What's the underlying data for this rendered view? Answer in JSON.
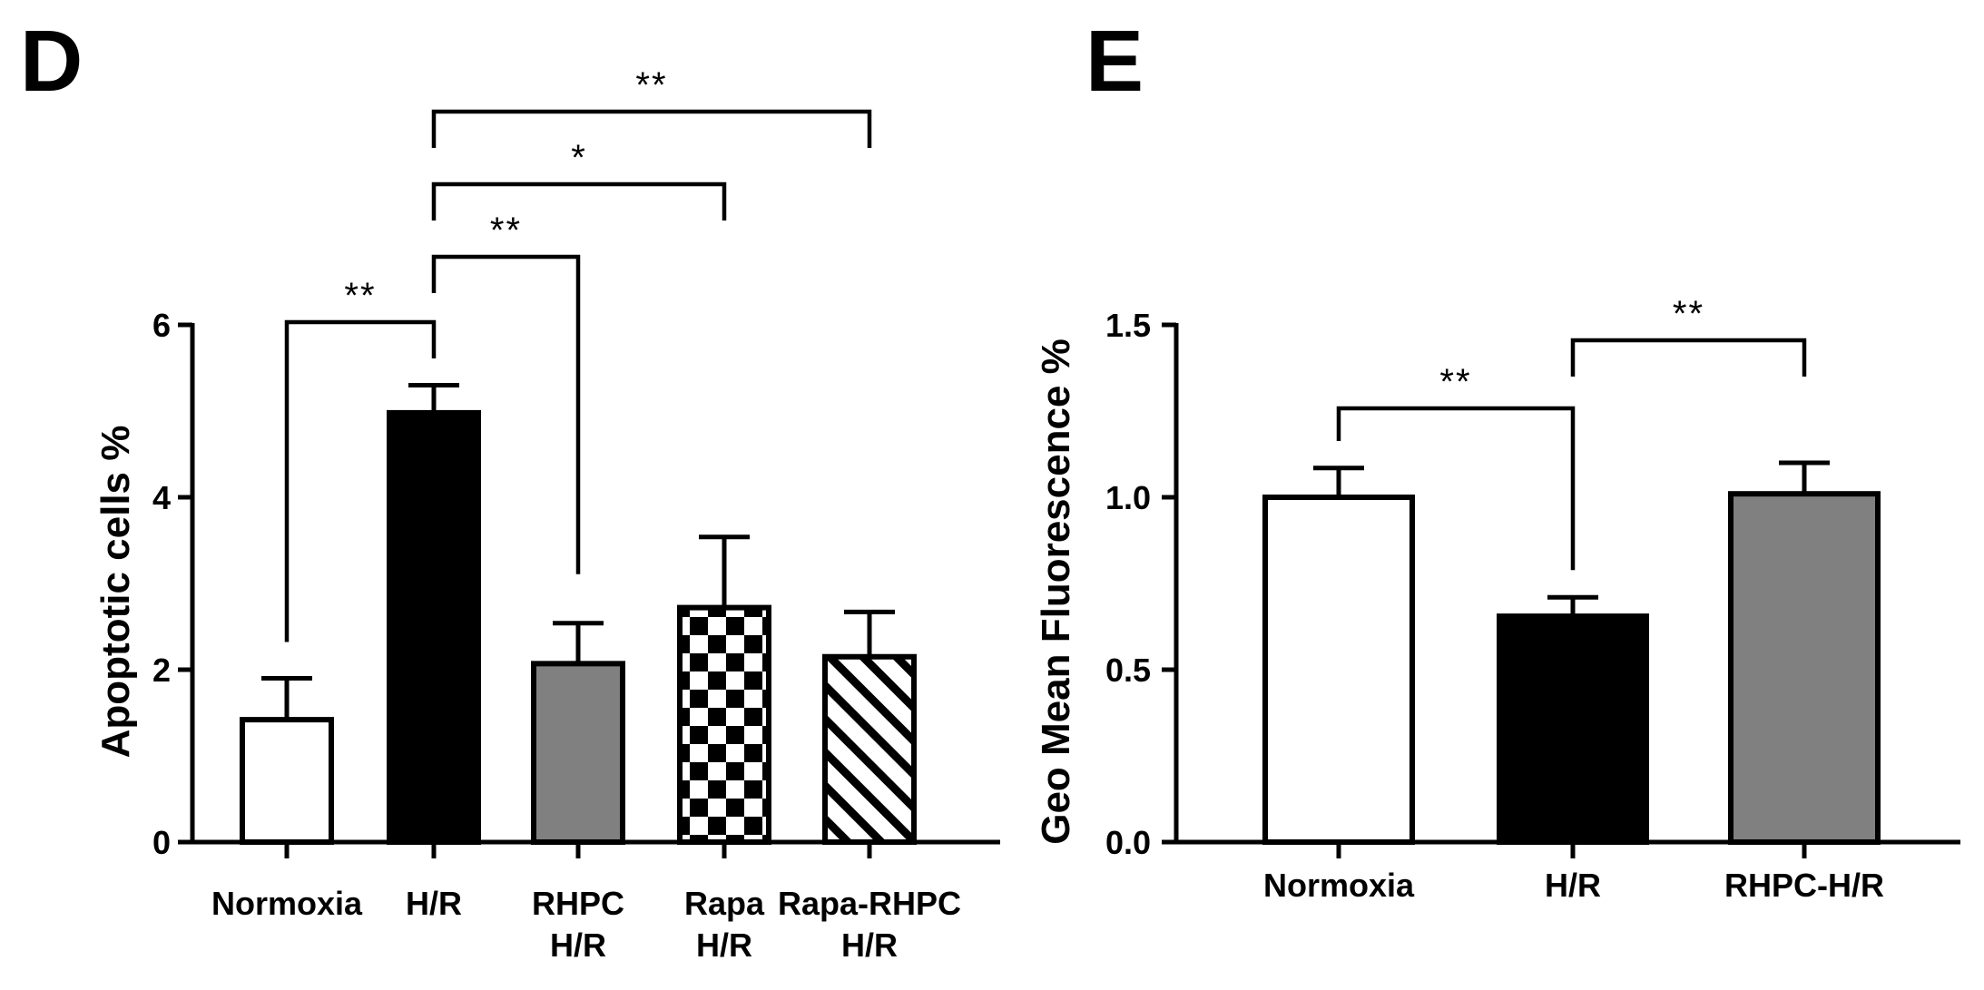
{
  "chart_data": [
    {
      "panel": "D",
      "type": "bar",
      "title": "",
      "xlabel": "",
      "ylabel": "Apoptotic cells %",
      "ylim": [
        0,
        6
      ],
      "yticks": [
        "0",
        "2",
        "4",
        "6"
      ],
      "categories": [
        [
          "Normoxia"
        ],
        [
          "H/R"
        ],
        [
          "RHPC",
          "H/R"
        ],
        [
          "Rapa",
          "H/R"
        ],
        [
          "Rapa-RHPC",
          "H/R"
        ]
      ],
      "values": [
        1.42,
        4.98,
        2.07,
        2.72,
        2.15
      ],
      "errors": [
        0.48,
        0.32,
        0.47,
        0.82,
        0.52
      ],
      "fills": [
        "white",
        "black",
        "gray",
        "checkerboard",
        "diagonal-hatch"
      ],
      "significance": [
        {
          "from": 0,
          "to": 1,
          "label": "**"
        },
        {
          "from": 1,
          "to": 2,
          "label": "**"
        },
        {
          "from": 1,
          "to": 3,
          "label": "*"
        },
        {
          "from": 1,
          "to": 4,
          "label": "**"
        }
      ]
    },
    {
      "panel": "E",
      "type": "bar",
      "title": "",
      "xlabel": "",
      "ylabel": "Geo Mean Fluorescence %",
      "ylim": [
        0,
        1.5
      ],
      "yticks": [
        "0.0",
        "0.5",
        "1.0",
        "1.5"
      ],
      "categories": [
        [
          "Normoxia"
        ],
        [
          "H/R"
        ],
        [
          "RHPC-H/R"
        ]
      ],
      "values": [
        1.0,
        0.655,
        1.01
      ],
      "errors": [
        0.085,
        0.055,
        0.09
      ],
      "fills": [
        "white",
        "black",
        "gray"
      ],
      "significance": [
        {
          "from": 0,
          "to": 1,
          "label": "**"
        },
        {
          "from": 1,
          "to": 2,
          "label": "**"
        }
      ]
    }
  ],
  "colors": {
    "black": "#000000",
    "white": "#ffffff",
    "gray": "#808080"
  }
}
